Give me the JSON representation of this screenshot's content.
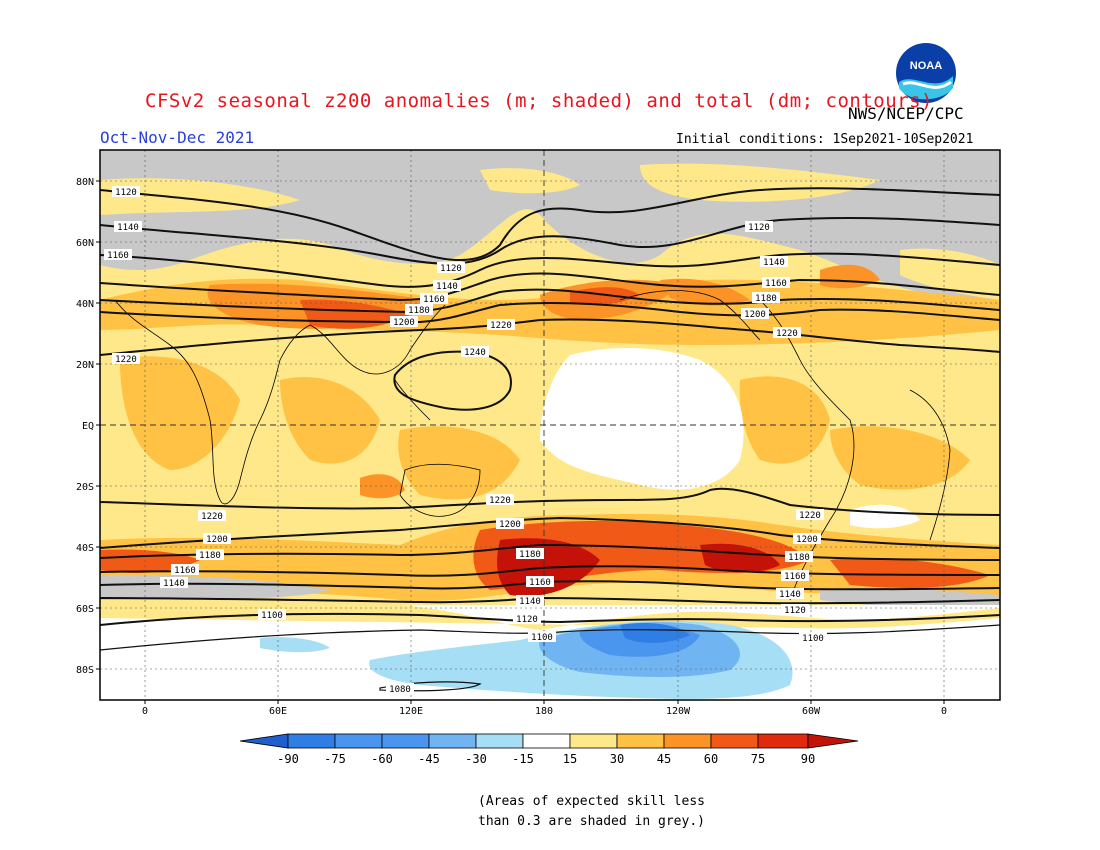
{
  "header": {
    "title": "CFSv2 seasonal z200 anomalies (m; shaded) and total (dm; contours)",
    "season": "Oct-Nov-Dec 2021",
    "agency": "NWS/NCEP/CPC",
    "initial_conditions": "Initial conditions: 1Sep2021-10Sep2021",
    "logo_text": "NOAA"
  },
  "axes": {
    "lat_labels": [
      "80N",
      "60N",
      "40N",
      "20N",
      "EQ",
      "20S",
      "40S",
      "60S",
      "80S"
    ],
    "lon_labels": [
      "0",
      "60E",
      "120E",
      "180",
      "120W",
      "60W",
      "0"
    ]
  },
  "contour_labels": [
    "1120",
    "1140",
    "1160",
    "1180",
    "1200",
    "1220",
    "1240",
    "1100",
    "1080"
  ],
  "colorbar": {
    "ticks": [
      "-90",
      "-75",
      "-60",
      "-45",
      "-30",
      "-15",
      "15",
      "30",
      "45",
      "60",
      "75",
      "90"
    ],
    "colors": [
      "#1f5fd0",
      "#2f7ee6",
      "#4a96ee",
      "#70b4f2",
      "#a6def5",
      "#ffffff",
      "#ffe88a",
      "#ffc244",
      "#fb9327",
      "#f15a16",
      "#c41208"
    ]
  },
  "colors": {
    "skill_grey": "#c8c8c8",
    "title_red": "#e8141e",
    "season_blue": "#2b40d6"
  },
  "footnote": {
    "line1": "(Areas of expected skill less",
    "line2": "than 0.3 are shaded in grey.)"
  }
}
